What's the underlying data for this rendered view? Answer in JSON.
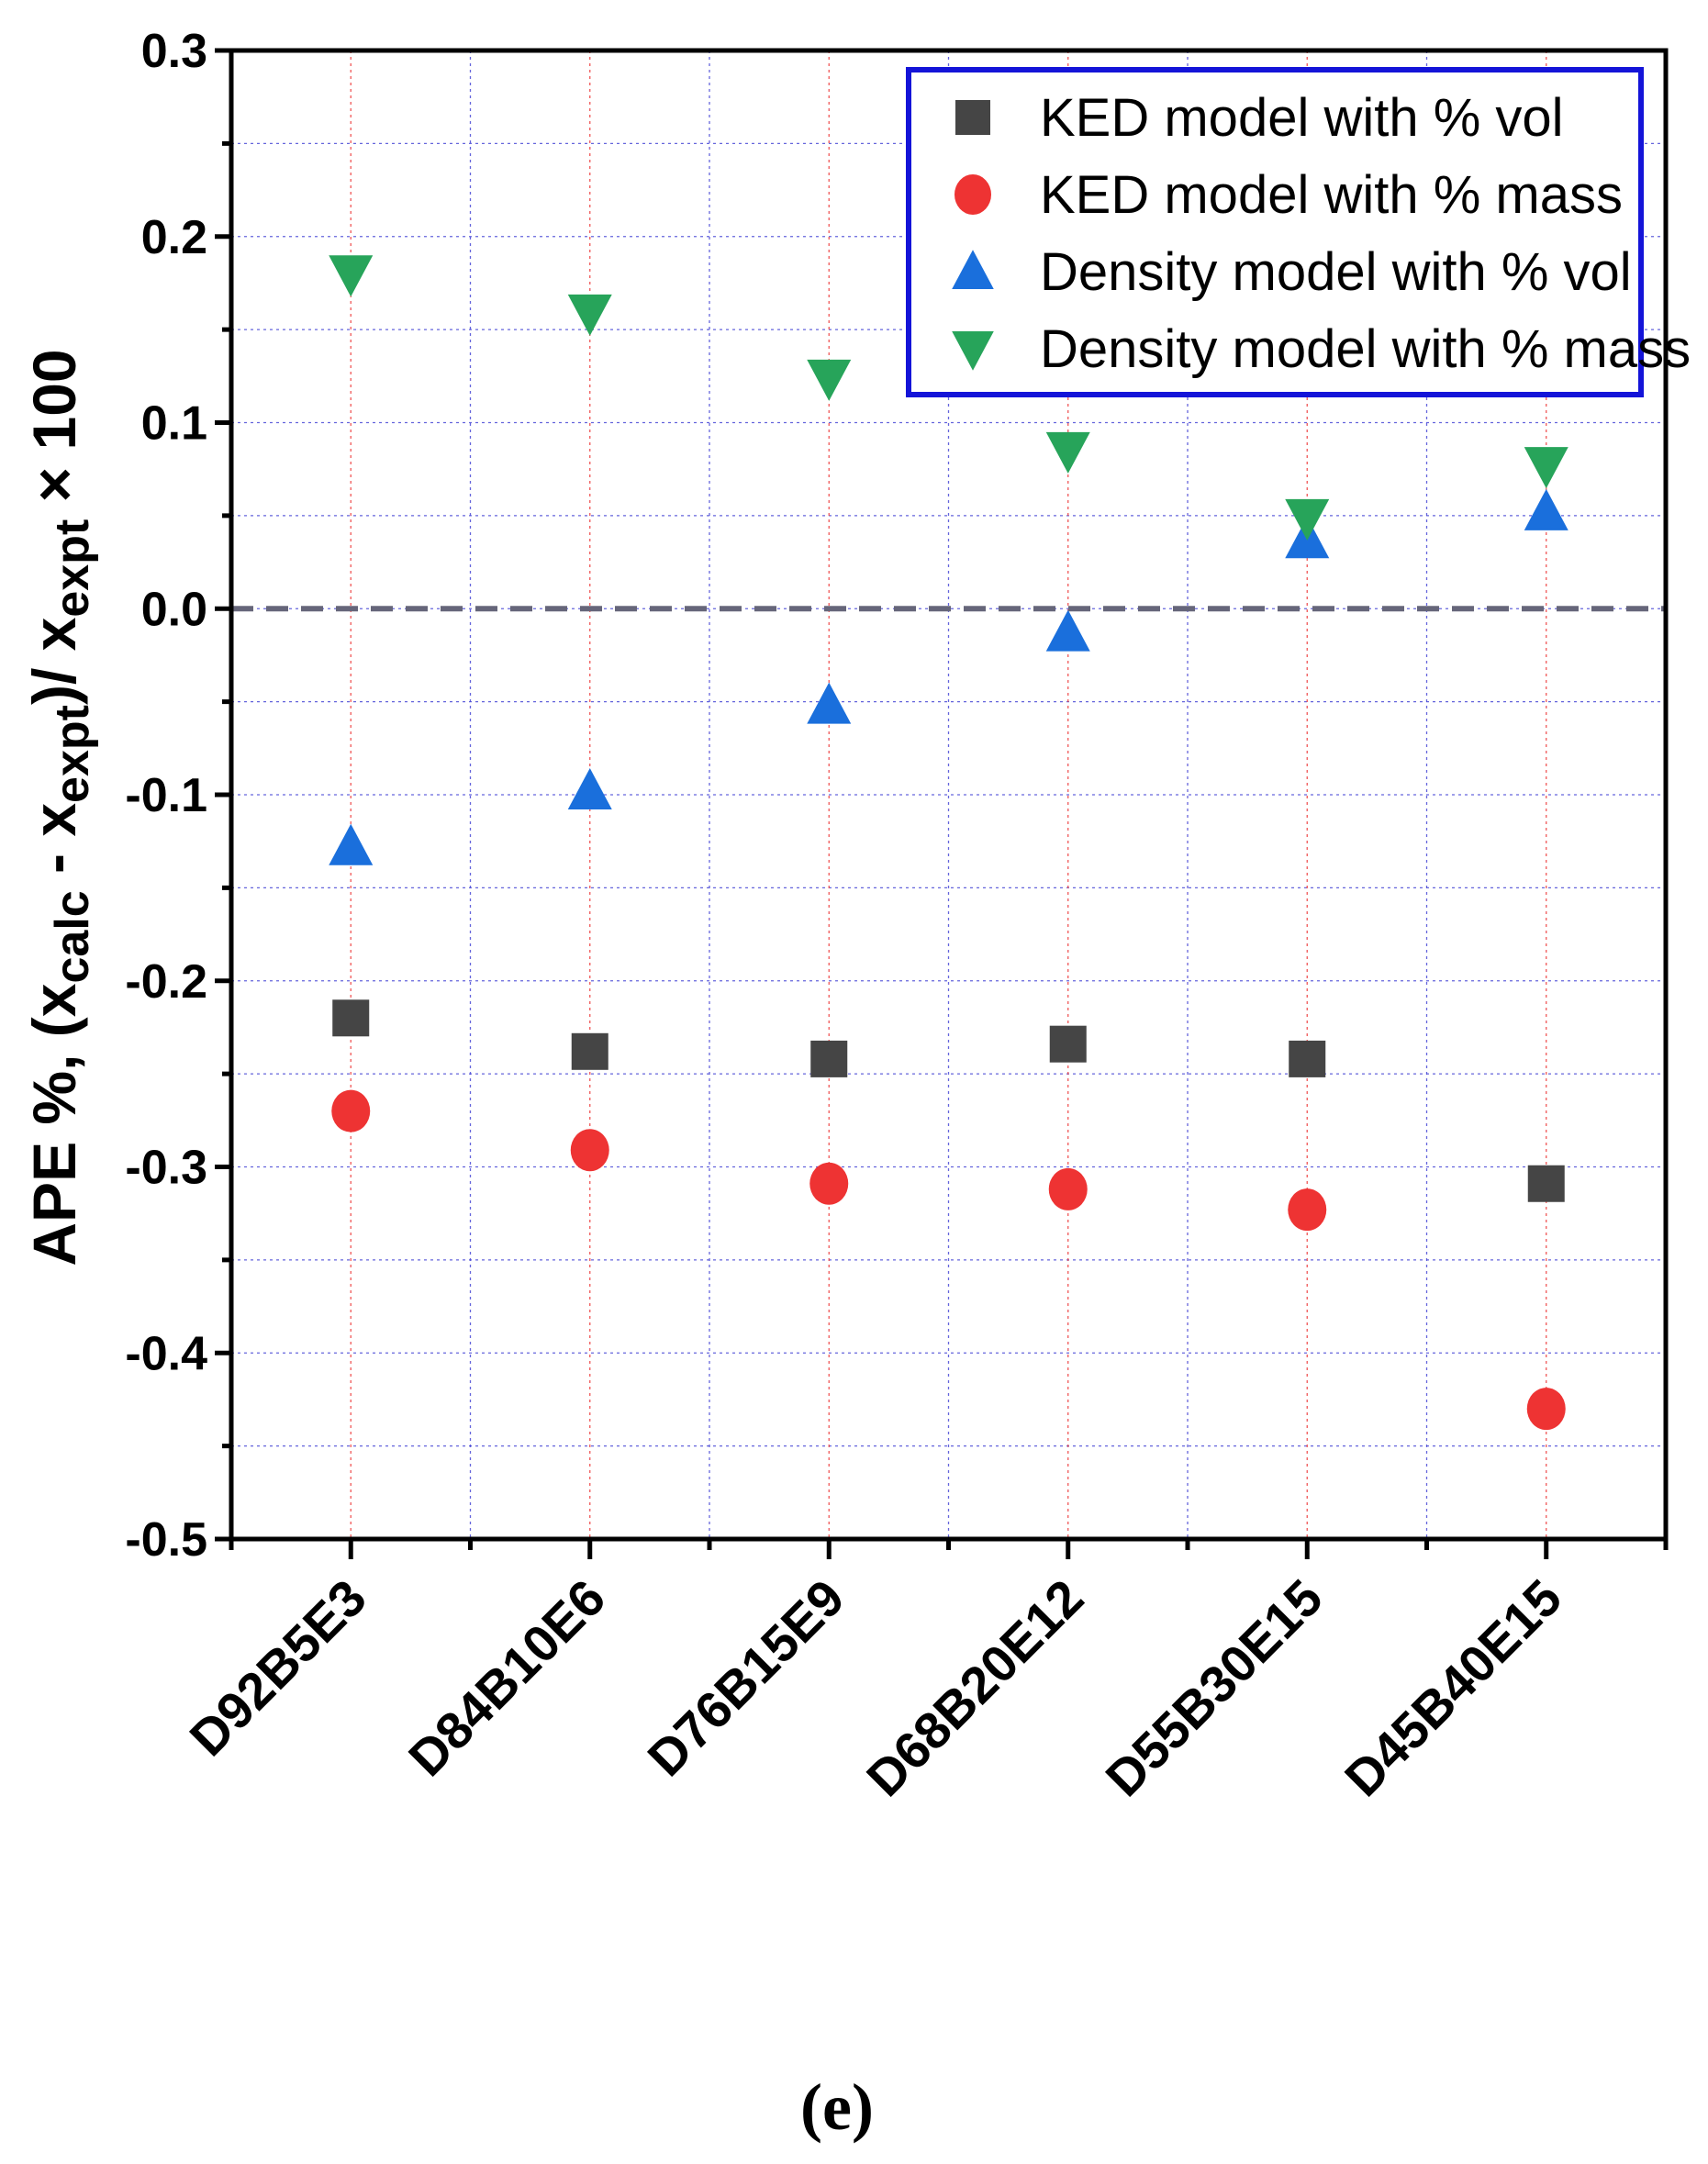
{
  "chart_data": {
    "type": "scatter",
    "title": "",
    "caption": "(e)",
    "xlabel": "",
    "ylabel": {
      "prefix": "APE %, (x",
      "calc_sub": "calc",
      "minus": " - x",
      "expt_sub": "expt",
      "slash": ")/ x",
      "expt_sub2": "expt",
      "suffix": " × 100"
    },
    "categories": [
      "D92B5E3",
      "D84B10E6",
      "D76B15E9",
      "D68B20E12",
      "D55B30E15",
      "D45B40E15"
    ],
    "ylim": [
      -0.5,
      0.3
    ],
    "yticks": [
      0.3,
      0.2,
      0.1,
      0.0,
      -0.1,
      -0.2,
      -0.3,
      -0.4,
      -0.5
    ],
    "ytick_labels": [
      "0.3",
      "0.2",
      "0.1",
      "0.0",
      "-0.1",
      "-0.2",
      "-0.3",
      "-0.4",
      "-0.5"
    ],
    "reference_line": 0.0,
    "grid": true,
    "legend_position": "top-right",
    "series": [
      {
        "name": "KED model with % vol",
        "marker": "square",
        "color": "#454545",
        "values": [
          -0.22,
          -0.238,
          -0.242,
          -0.234,
          -0.242,
          -0.309
        ]
      },
      {
        "name": "KED model with % mass",
        "marker": "circle",
        "color": "#ee3333",
        "values": [
          -0.27,
          -0.291,
          -0.309,
          -0.312,
          -0.323,
          -0.43
        ]
      },
      {
        "name": "Density model with % vol",
        "marker": "triangle-up",
        "color": "#1a6fdc",
        "values": [
          -0.128,
          -0.098,
          -0.052,
          -0.013,
          0.037,
          0.052
        ]
      },
      {
        "name": "Density model with % mass",
        "marker": "triangle-down",
        "color": "#27a45a",
        "values": [
          0.18,
          0.159,
          0.124,
          0.085,
          0.049,
          0.077
        ]
      }
    ]
  }
}
